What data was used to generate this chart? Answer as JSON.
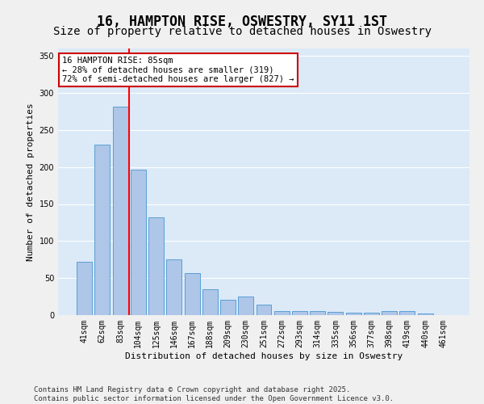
{
  "title": "16, HAMPTON RISE, OSWESTRY, SY11 1ST",
  "subtitle": "Size of property relative to detached houses in Oswestry",
  "xlabel": "Distribution of detached houses by size in Oswestry",
  "ylabel": "Number of detached properties",
  "categories": [
    "41sqm",
    "62sqm",
    "83sqm",
    "104sqm",
    "125sqm",
    "146sqm",
    "167sqm",
    "188sqm",
    "209sqm",
    "230sqm",
    "251sqm",
    "272sqm",
    "293sqm",
    "314sqm",
    "335sqm",
    "356sqm",
    "377sqm",
    "398sqm",
    "419sqm",
    "440sqm",
    "461sqm"
  ],
  "values": [
    72,
    230,
    281,
    196,
    132,
    75,
    57,
    35,
    21,
    25,
    14,
    5,
    5,
    5,
    4,
    3,
    3,
    6,
    6,
    2,
    0
  ],
  "bar_color": "#aec6e8",
  "bar_edge_color": "#5a9fd4",
  "red_line_x": 2.5,
  "annotation_line1": "16 HAMPTON RISE: 85sqm",
  "annotation_line2": "← 28% of detached houses are smaller (319)",
  "annotation_line3": "72% of semi-detached houses are larger (827) →",
  "annotation_box_color": "#ffffff",
  "annotation_box_edge": "#cc0000",
  "ylim": [
    0,
    360
  ],
  "yticks": [
    0,
    50,
    100,
    150,
    200,
    250,
    300,
    350
  ],
  "footer_line1": "Contains HM Land Registry data © Crown copyright and database right 2025.",
  "footer_line2": "Contains public sector information licensed under the Open Government Licence v3.0.",
  "background_color": "#dce9f7",
  "grid_color": "#ffffff",
  "title_fontsize": 12,
  "subtitle_fontsize": 10,
  "axis_label_fontsize": 8,
  "tick_fontsize": 7,
  "annotation_fontsize": 7.5,
  "footer_fontsize": 6.5
}
